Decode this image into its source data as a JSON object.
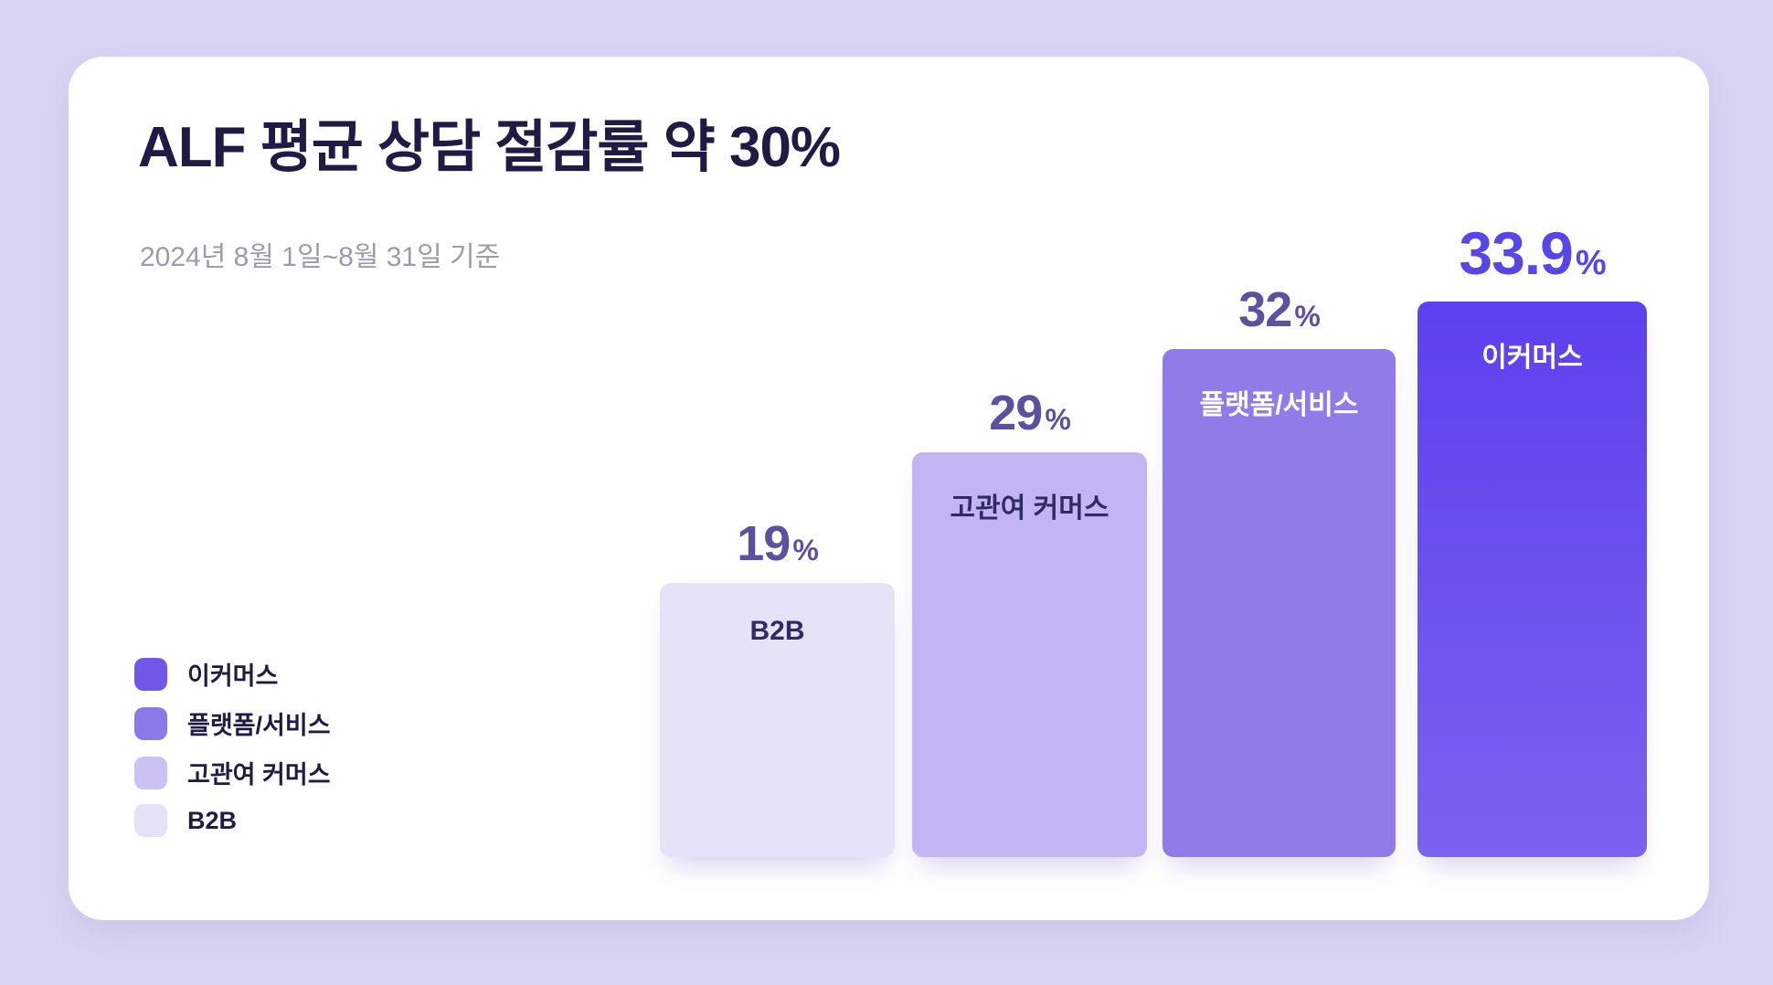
{
  "chart_data": {
    "type": "bar",
    "title": "ALF 평균 상담 절감률 약 30%",
    "subtitle": "2024년 8월 1일~8월 31일 기준",
    "unit": "%",
    "categories": [
      "B2B",
      "고관여 커머스",
      "플랫폼/서비스",
      "이커머스"
    ],
    "values": [
      19,
      29,
      32,
      33.9
    ],
    "bars": [
      {
        "label": "B2B",
        "value": "19",
        "label_position": "inside-top",
        "label_color": "dark"
      },
      {
        "label": "고관여 커머스",
        "value": "29",
        "label_position": "inside-top",
        "label_color": "dark"
      },
      {
        "label": "플랫폼/서비스",
        "value": "32",
        "label_position": "inside-top",
        "label_color": "light"
      },
      {
        "label": "이커머스",
        "value": "33.9",
        "label_position": "inside-top",
        "label_color": "light"
      }
    ],
    "legend": {
      "position": "bottom-left",
      "items": [
        {
          "label": "이커머스"
        },
        {
          "label": "플랫폼/서비스"
        },
        {
          "label": "고관여 커머스"
        },
        {
          "label": "B2B"
        }
      ]
    },
    "axes_visible": false,
    "grid": false
  },
  "colors": {
    "bg": "#D9D4F2",
    "card": "#FFFFFF",
    "title": "#201A44",
    "subtitle": "#9D9AAC",
    "value-label": "#5C519E",
    "value-highlight": "#5946E6",
    "bar-b2b": "#E6E3F9",
    "bar-high": "#C2B5F1",
    "bar-platform": "#8F7CE9",
    "bar-ecom-top": "#5D40EE",
    "bar-ecom-bottom": "#7B62F0",
    "bar-text-dark": "#322B63",
    "bar-text-light": "#FFFFFF",
    "legend-ecommerce": "#7157E9",
    "legend-platform": "#8C79E9",
    "legend-high": "#CBC2F3",
    "legend-b2b": "#E4E1F8"
  }
}
